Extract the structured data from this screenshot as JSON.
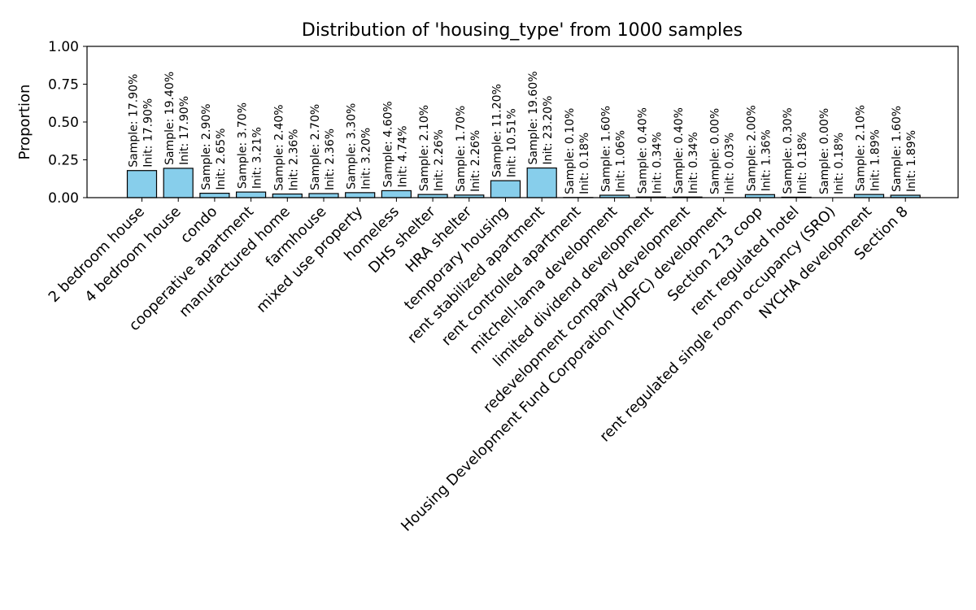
{
  "chart_data": {
    "type": "bar",
    "title": "Distribution of 'housing_type' from 1000 samples",
    "xlabel": "",
    "ylabel": "Proportion",
    "ylim": [
      0,
      1.0
    ],
    "yticks": [
      "0.00",
      "0.25",
      "0.50",
      "0.75",
      "1.00"
    ],
    "grid": false,
    "bar_color": "#87ceeb",
    "edge_color": "#000000",
    "categories": [
      "2 bedroom house",
      "4 bedroom house",
      "condo",
      "cooperative apartment",
      "manufactured home",
      "farmhouse",
      "mixed use property",
      "homeless",
      "DHS shelter",
      "HRA shelter",
      "temporary housing",
      "rent stabilized apartment",
      "rent controlled apartment",
      "mitchell-lama development",
      "limited dividend development",
      "redevelopment company development",
      "Housing Development Fund Corporation (HDFC) development",
      "Section 213 coop",
      "rent regulated hotel",
      "rent regulated single room occupancy (SRO)",
      "NYCHA development",
      "Section 8"
    ],
    "values": [
      0.179,
      0.194,
      0.029,
      0.037,
      0.024,
      0.027,
      0.033,
      0.046,
      0.021,
      0.017,
      0.112,
      0.196,
      0.001,
      0.016,
      0.004,
      0.004,
      0.0,
      0.02,
      0.003,
      0.0,
      0.021,
      0.016
    ],
    "sample_labels": [
      "Sample: 17.90%",
      "Sample: 19.40%",
      "Sample: 2.90%",
      "Sample: 3.70%",
      "Sample: 2.40%",
      "Sample: 2.70%",
      "Sample: 3.30%",
      "Sample: 4.60%",
      "Sample: 2.10%",
      "Sample: 1.70%",
      "Sample: 11.20%",
      "Sample: 19.60%",
      "Sample: 0.10%",
      "Sample: 1.60%",
      "Sample: 0.40%",
      "Sample: 0.40%",
      "Sample: 0.00%",
      "Sample: 2.00%",
      "Sample: 0.30%",
      "Sample: 0.00%",
      "Sample: 2.10%",
      "Sample: 1.60%"
    ],
    "init_labels": [
      "Init: 17.90%",
      "Init: 17.90%",
      "Init: 2.65%",
      "Init: 3.21%",
      "Init: 2.36%",
      "Init: 2.36%",
      "Init: 3.20%",
      "Init: 4.74%",
      "Init: 2.26%",
      "Init: 2.26%",
      "Init: 10.51%",
      "Init: 23.20%",
      "Init: 0.18%",
      "Init: 1.06%",
      "Init: 0.34%",
      "Init: 0.34%",
      "Init: 0.03%",
      "Init: 1.36%",
      "Init: 0.18%",
      "Init: 0.18%",
      "Init: 1.89%",
      "Init: 1.89%"
    ]
  }
}
